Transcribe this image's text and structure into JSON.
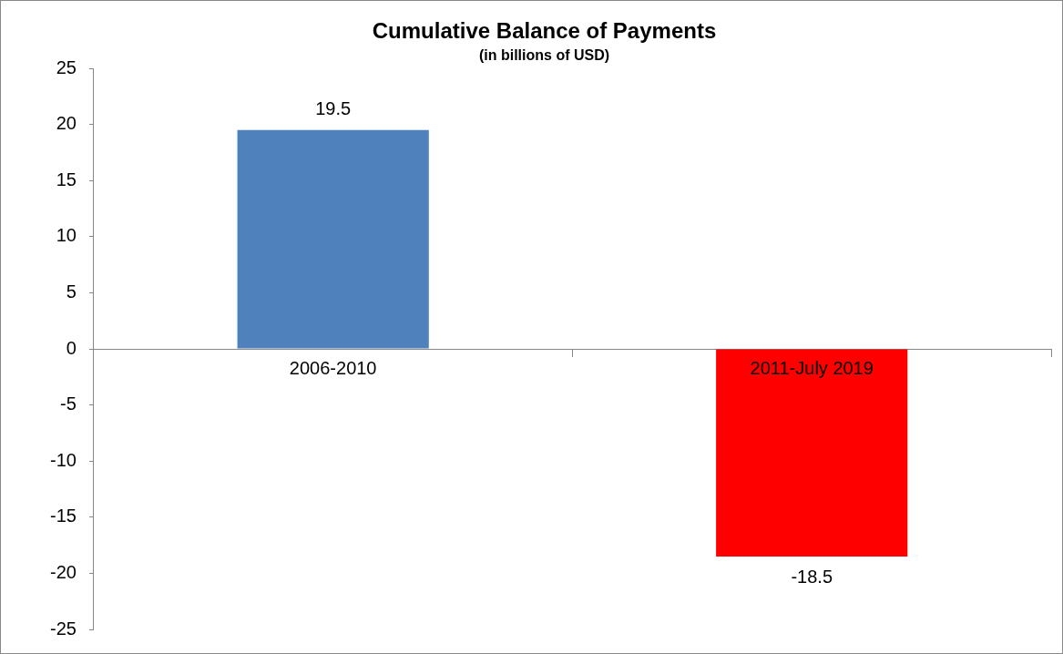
{
  "chart_data": {
    "type": "bar",
    "title": "Cumulative Balance of Payments",
    "subtitle": "(in billions of USD)",
    "categories": [
      "2006-2010",
      "2011-July 2019"
    ],
    "values": [
      19.5,
      -18.5
    ],
    "colors": [
      "#4f81bd",
      "#ff0000"
    ],
    "ylim": [
      -25,
      25
    ],
    "yticks": [
      -25,
      -20,
      -15,
      -10,
      -5,
      0,
      5,
      10,
      15,
      20,
      25
    ],
    "grid": false,
    "data_labels": true
  }
}
